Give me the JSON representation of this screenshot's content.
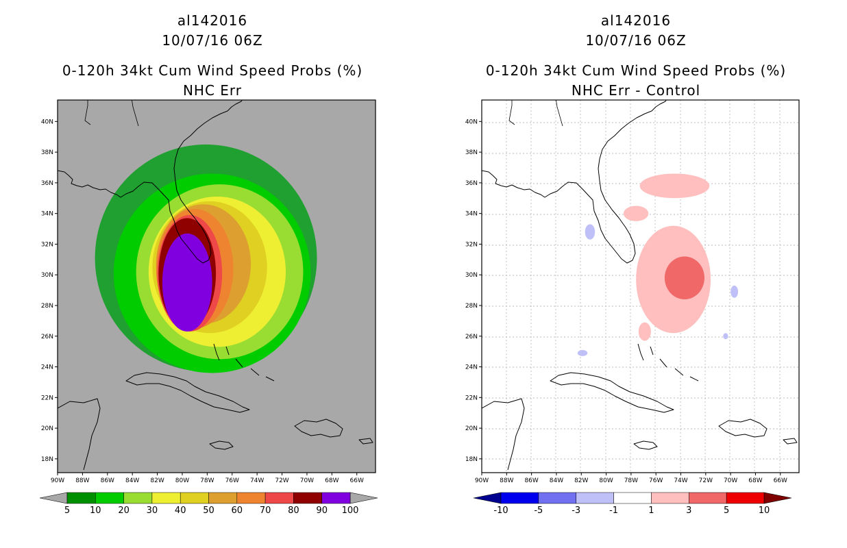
{
  "panels": [
    {
      "storm_id": "al142016",
      "datetime": "10/07/16 06Z",
      "title": "0-120h 34kt Cum Wind Speed Probs (%)",
      "subtitle": "NHC Err"
    },
    {
      "storm_id": "al142016",
      "datetime": "10/07/16 06Z",
      "title": "0-120h 34kt Cum Wind Speed Probs (%)",
      "subtitle": "NHC Err - Control"
    }
  ],
  "axes": {
    "lon_ticks": [
      "90W",
      "88W",
      "86W",
      "84W",
      "82W",
      "80W",
      "78W",
      "76W",
      "74W",
      "72W",
      "70W",
      "68W",
      "66W"
    ],
    "lat_ticks": [
      "40N",
      "38N",
      "36N",
      "34N",
      "32N",
      "30N",
      "28N",
      "26N",
      "24N",
      "22N",
      "20N",
      "18N"
    ]
  },
  "chart_data": [
    {
      "type": "heatmap",
      "title": "0-120h 34kt Cum Wind Speed Probs (%)",
      "subtitle": "NHC Err",
      "xlim": [
        -90,
        -64.5
      ],
      "ylim": [
        17.1,
        41.4
      ],
      "background_color": "#a8a8a8",
      "color_levels": [
        5,
        10,
        20,
        30,
        40,
        50,
        60,
        70,
        80,
        90,
        100
      ],
      "color_labels": [
        "5",
        "10",
        "20",
        "30",
        "40",
        "50",
        "60",
        "70",
        "80",
        "90",
        "100"
      ],
      "colors": [
        "#008f00",
        "#00cc00",
        "#99dd33",
        "#eeee33",
        "#dfd022",
        "#dda030",
        "#ef8430",
        "#ef4848",
        "#8f0000",
        "#8000e0"
      ],
      "over_under_color": "#a8a8a8",
      "contours": [
        {
          "level": 5,
          "color": "#20a030",
          "cx": -78.1,
          "cy": 31.1,
          "rx": 8.9,
          "ry": 7.4
        },
        {
          "level": 10,
          "color": "#00cc00",
          "cx": -77.6,
          "cy": 30.1,
          "rx": 7.9,
          "ry": 6.5
        },
        {
          "level": 20,
          "color": "#99dd33",
          "cx": -77.0,
          "cy": 30.2,
          "rx": 6.7,
          "ry": 5.7
        },
        {
          "level": 30,
          "color": "#eeee33",
          "cx": -77.2,
          "cy": 30.2,
          "rx": 5.5,
          "ry": 4.9
        },
        {
          "level": 40,
          "color": "#dfd022",
          "cx": -77.8,
          "cy": 30.5,
          "rx": 4.6,
          "ry": 4.3
        },
        {
          "level": 50,
          "color": "#dda030",
          "cx": -78.3,
          "cy": 30.7,
          "rx": 3.8,
          "ry": 3.9
        },
        {
          "level": 60,
          "color": "#ef8430",
          "cx": -79.0,
          "cy": 30.4,
          "rx": 3.1,
          "ry": 3.9
        },
        {
          "level": 70,
          "color": "#ef4848",
          "cx": -79.4,
          "cy": 30.1,
          "rx": 2.6,
          "ry": 3.8
        },
        {
          "level": 80,
          "color": "#8f0000",
          "cx": -79.6,
          "cy": 30.1,
          "rx": 2.3,
          "ry": 3.6
        },
        {
          "level": 90,
          "color": "#8000e0",
          "cx": -79.6,
          "cy": 29.5,
          "rx": 2.0,
          "ry": 3.2
        }
      ]
    },
    {
      "type": "heatmap",
      "title": "0-120h 34kt Cum Wind Speed Probs (%)",
      "subtitle": "NHC Err - Control",
      "xlim": [
        -90,
        -64.5
      ],
      "ylim": [
        17.1,
        41.4
      ],
      "background_color": "#ffffff",
      "color_levels": [
        -10,
        -5,
        -3,
        -1,
        1,
        3,
        5,
        10
      ],
      "color_labels": [
        "-10",
        "-5",
        "-3",
        "-1",
        "1",
        "3",
        "5",
        "10"
      ],
      "colors": [
        "#0000ee",
        "#7070f0",
        "#c0c0f8",
        "#ffffff",
        "#ffbfbf",
        "#f06868",
        "#ee0000"
      ],
      "under_color": "#000090",
      "over_color": "#800000",
      "contours": [
        {
          "level": 1,
          "color": "#ffbfbf",
          "cx": -74.6,
          "cy": 29.7,
          "rx": 3.0,
          "ry": 3.5
        },
        {
          "level": 1,
          "color": "#ffbfbf",
          "cx": -74.5,
          "cy": 35.8,
          "rx": 2.8,
          "ry": 0.8
        },
        {
          "level": 1,
          "color": "#ffbfbf",
          "cx": -77.6,
          "cy": 34.0,
          "rx": 1.0,
          "ry": 0.5
        },
        {
          "level": 1,
          "color": "#ffbfbf",
          "cx": -76.9,
          "cy": 26.3,
          "rx": 0.5,
          "ry": 0.6
        },
        {
          "level": 3,
          "color": "#f06868",
          "cx": -73.7,
          "cy": 29.8,
          "rx": 1.6,
          "ry": 1.4
        },
        {
          "level": -3,
          "color": "#c0c0f8",
          "cx": -81.3,
          "cy": 32.8,
          "rx": 0.4,
          "ry": 0.5
        },
        {
          "level": -3,
          "color": "#c0c0f8",
          "cx": -69.7,
          "cy": 28.9,
          "rx": 0.3,
          "ry": 0.4
        },
        {
          "level": -3,
          "color": "#c0c0f8",
          "cx": -70.4,
          "cy": 26.0,
          "rx": 0.2,
          "ry": 0.2
        },
        {
          "level": -3,
          "color": "#c0c0f8",
          "cx": -81.9,
          "cy": 24.9,
          "rx": 0.4,
          "ry": 0.2
        }
      ]
    }
  ]
}
